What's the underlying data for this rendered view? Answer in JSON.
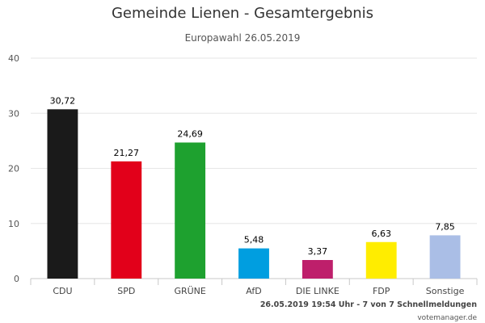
{
  "chart_data": {
    "type": "bar",
    "title": "Gemeinde Lienen - Gesamtergebnis",
    "subtitle": "Europawahl 26.05.2019",
    "categories": [
      "CDU",
      "SPD",
      "GRÜNE",
      "AfD",
      "DIE LINKE",
      "FDP",
      "Sonstige"
    ],
    "values": [
      30.72,
      21.27,
      24.69,
      5.48,
      3.37,
      6.63,
      7.85
    ],
    "value_labels": [
      "30,72",
      "21,27",
      "24,69",
      "5,48",
      "3,37",
      "6,63",
      "7,85"
    ],
    "colors": [
      "#1a1a1a",
      "#e2001a",
      "#1ea12f",
      "#009ee0",
      "#be1f6b",
      "#ffed00",
      "#aabee6"
    ],
    "yticks": [
      0,
      10,
      20,
      30,
      40
    ],
    "ylim": [
      0,
      40
    ],
    "grid": true,
    "legend": "none"
  },
  "footer": {
    "status": "26.05.2019 19:54 Uhr - 7 von 7 Schnellmeldungen",
    "source": "votemanager.de"
  }
}
